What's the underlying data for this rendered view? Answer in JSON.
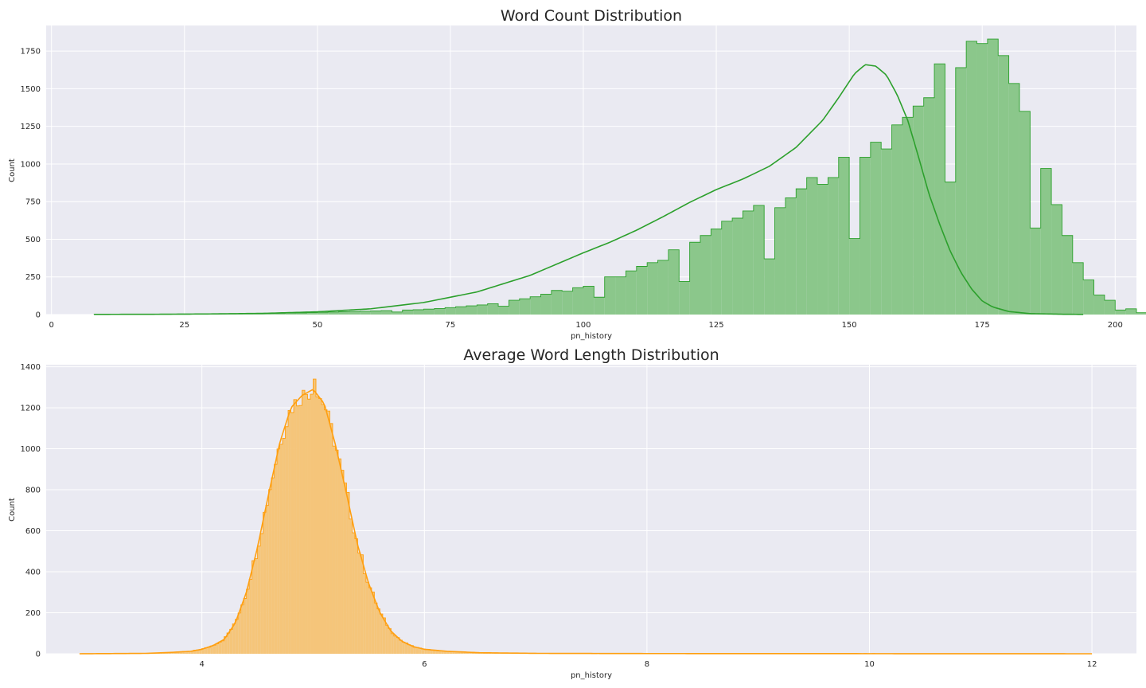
{
  "chart_data": [
    {
      "type": "histogram",
      "title": "Word Count Distribution",
      "xlabel": "pn_history",
      "ylabel": "Count",
      "xlim": [
        -1,
        204
      ],
      "ylim": [
        0,
        1920
      ],
      "xticks": [
        0,
        25,
        50,
        75,
        100,
        125,
        150,
        175,
        200
      ],
      "yticks": [
        0,
        250,
        500,
        750,
        1000,
        1250,
        1500,
        1750
      ],
      "grid": true,
      "color": "#2ca02c",
      "fill_color": "#8bc78b",
      "element": "step",
      "kde": true,
      "bin_start": 8,
      "bin_width": 2,
      "counts": [
        1,
        1,
        1,
        1,
        1,
        2,
        2,
        2,
        2,
        3,
        3,
        4,
        5,
        5,
        6,
        7,
        8,
        9,
        10,
        11,
        13,
        15,
        17,
        19,
        20,
        22,
        24,
        26,
        17,
        30,
        32,
        36,
        40,
        46,
        52,
        58,
        64,
        72,
        55,
        95,
        105,
        118,
        135,
        160,
        155,
        178,
        188,
        115,
        250,
        250,
        290,
        320,
        345,
        360,
        430,
        220,
        480,
        525,
        568,
        620,
        640,
        688,
        725,
        370,
        710,
        775,
        835,
        910,
        865,
        910,
        1045,
        505,
        1045,
        1145,
        1100,
        1260,
        1310,
        1385,
        1440,
        1665,
        880,
        1640,
        1815,
        1800,
        1830,
        1720,
        1535,
        1350,
        575,
        970,
        730,
        525,
        345,
        230,
        130,
        95,
        30,
        38,
        12,
        6,
        3,
        2,
        1,
        1
      ],
      "kde_points": [
        [
          8,
          1
        ],
        [
          20,
          2
        ],
        [
          30,
          4
        ],
        [
          40,
          8
        ],
        [
          50,
          18
        ],
        [
          60,
          38
        ],
        [
          70,
          80
        ],
        [
          80,
          150
        ],
        [
          90,
          260
        ],
        [
          100,
          410
        ],
        [
          105,
          480
        ],
        [
          110,
          560
        ],
        [
          115,
          650
        ],
        [
          120,
          745
        ],
        [
          125,
          830
        ],
        [
          130,
          900
        ],
        [
          135,
          985
        ],
        [
          140,
          1110
        ],
        [
          145,
          1290
        ],
        [
          148,
          1440
        ],
        [
          151,
          1600
        ],
        [
          153,
          1660
        ],
        [
          155,
          1650
        ],
        [
          157,
          1590
        ],
        [
          159,
          1460
        ],
        [
          161,
          1290
        ],
        [
          163,
          1050
        ],
        [
          165,
          800
        ],
        [
          167,
          600
        ],
        [
          169,
          420
        ],
        [
          171,
          280
        ],
        [
          173,
          170
        ],
        [
          175,
          90
        ],
        [
          177,
          50
        ],
        [
          180,
          20
        ],
        [
          184,
          6
        ],
        [
          190,
          2
        ],
        [
          194,
          1
        ]
      ]
    },
    {
      "type": "histogram",
      "title": "Average Word Length Distribution",
      "xlabel": "pn_history",
      "ylabel": "Count",
      "xlim": [
        2.6,
        12.4
      ],
      "ylim": [
        0,
        1410
      ],
      "xticks": [
        4,
        6,
        8,
        10,
        12
      ],
      "yticks": [
        0,
        200,
        400,
        600,
        800,
        1000,
        1200,
        1400
      ],
      "grid": true,
      "color": "#ff9f10",
      "fill_color": "#f5c57a",
      "element": "step",
      "kde": true,
      "bin_start": 2.9,
      "bin_width": 0.025,
      "kde_points": [
        [
          2.9,
          0
        ],
        [
          3.5,
          2
        ],
        [
          3.7,
          6
        ],
        [
          3.9,
          12
        ],
        [
          4.0,
          22
        ],
        [
          4.1,
          40
        ],
        [
          4.2,
          70
        ],
        [
          4.3,
          150
        ],
        [
          4.4,
          300
        ],
        [
          4.5,
          520
        ],
        [
          4.6,
          780
        ],
        [
          4.7,
          1030
        ],
        [
          4.8,
          1200
        ],
        [
          4.9,
          1260
        ],
        [
          5.0,
          1290
        ],
        [
          5.1,
          1220
        ],
        [
          5.2,
          1020
        ],
        [
          5.3,
          780
        ],
        [
          5.4,
          530
        ],
        [
          5.5,
          340
        ],
        [
          5.6,
          200
        ],
        [
          5.7,
          110
        ],
        [
          5.8,
          60
        ],
        [
          5.9,
          35
        ],
        [
          6.0,
          22
        ],
        [
          6.2,
          12
        ],
        [
          6.5,
          5
        ],
        [
          7.0,
          2
        ],
        [
          8.0,
          1
        ],
        [
          12.0,
          0
        ]
      ]
    }
  ]
}
